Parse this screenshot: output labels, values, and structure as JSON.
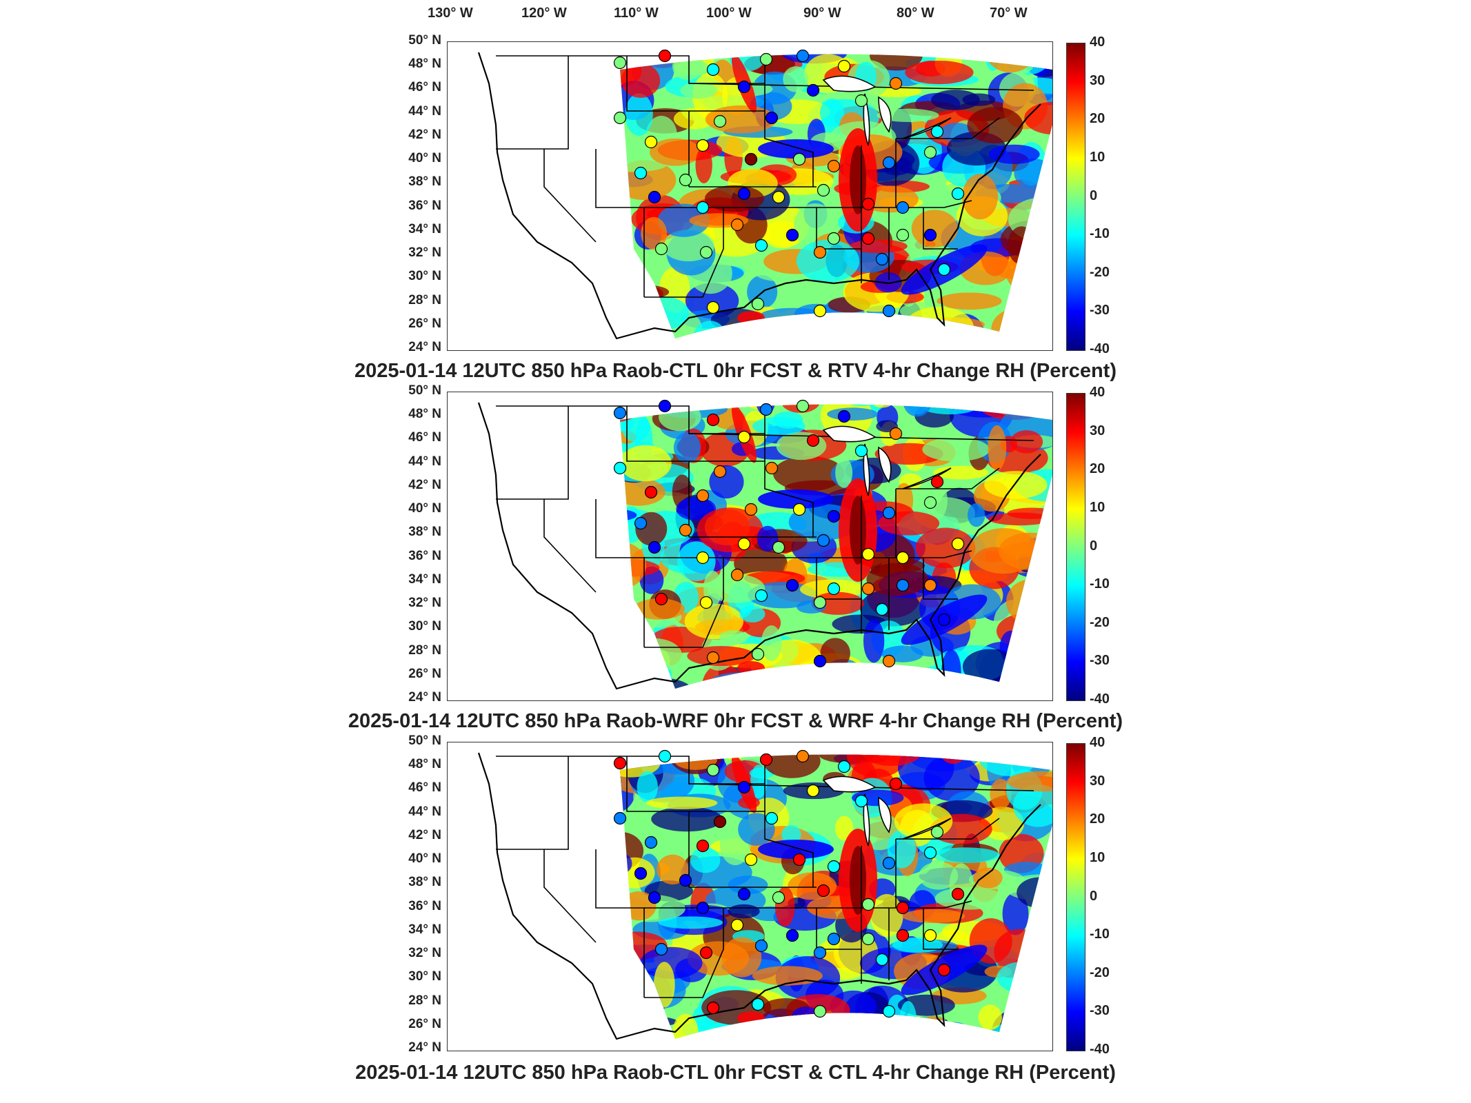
{
  "longitude_labels": [
    "130° W",
    "120° W",
    "110° W",
    "100° W",
    "90° W",
    "80° W",
    "70° W"
  ],
  "latitude_labels": [
    "50° N",
    "48° N",
    "46° N",
    "44° N",
    "42° N",
    "40° N",
    "38° N",
    "36° N",
    "34° N",
    "32° N",
    "30° N",
    "28° N",
    "26° N",
    "24° N"
  ],
  "colorbar": {
    "ticks": [
      "40",
      "30",
      "20",
      "10",
      "0",
      "-10",
      "-20",
      "-30",
      "-40"
    ],
    "range": [
      -40,
      40
    ],
    "colormap": "jet",
    "colors": [
      "#00007f",
      "#0000ff",
      "#007fff",
      "#00ffff",
      "#7fff7f",
      "#ffff00",
      "#ff7f00",
      "#ff0000",
      "#7f0000"
    ]
  },
  "panels": [
    {
      "title": "2025-01-14 12UTC 850 hPa Raob-CTL 0hr FCST & RTV 4-hr Change RH (Percent)"
    },
    {
      "title": "2025-01-14 12UTC 850 hPa Raob-WRF 0hr FCST & WRF 4-hr Change RH (Percent)"
    },
    {
      "title": "2025-01-14 12UTC 850 hPa Raob-CTL 0hr FCST & CTL 4-hr Change RH (Percent)"
    }
  ]
}
